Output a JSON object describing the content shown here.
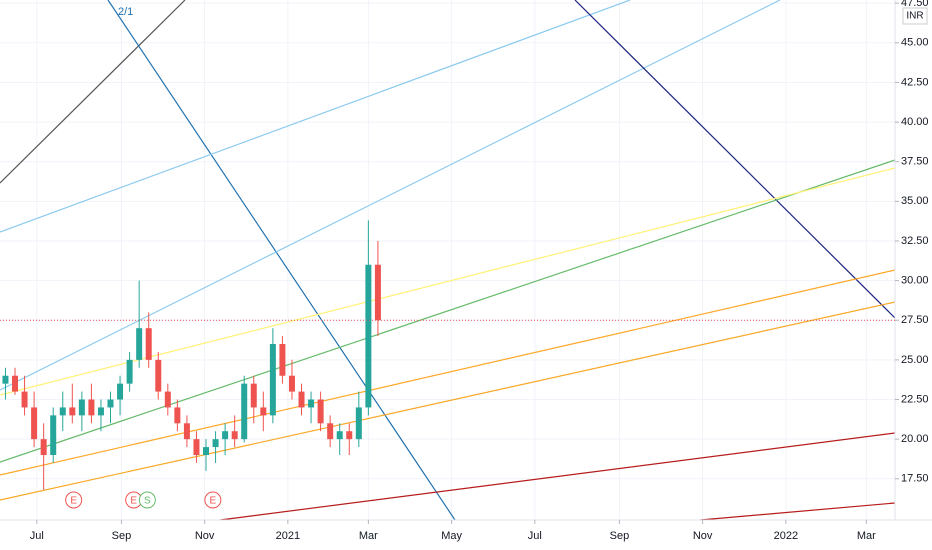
{
  "chart_data": {
    "type": "candlestick",
    "currency": "INR",
    "annotations": [
      "2/1"
    ],
    "xlim": [
      "2020-06-04",
      "2022-03-22"
    ],
    "ylim": [
      14.9,
      47.7
    ],
    "grid": true,
    "up_color": "#26a69a",
    "down_color": "#ef5350",
    "xticks": [
      {
        "value": "2020-07-01",
        "label": "Jul"
      },
      {
        "value": "2020-09-01",
        "label": "Sep"
      },
      {
        "value": "2020-11-01",
        "label": "Nov"
      },
      {
        "value": "2021-01-01",
        "label": "2021"
      },
      {
        "value": "2021-03-01",
        "label": "Mar"
      },
      {
        "value": "2021-05-01",
        "label": "May"
      },
      {
        "value": "2021-07-01",
        "label": "Jul"
      },
      {
        "value": "2021-09-01",
        "label": "Sep"
      },
      {
        "value": "2021-11-01",
        "label": "Nov"
      },
      {
        "value": "2022-01-01",
        "label": "2022"
      },
      {
        "value": "2022-03-01",
        "label": "Mar"
      }
    ],
    "yticks": [
      {
        "value": 17.5,
        "label": "17.50"
      },
      {
        "value": 20,
        "label": "20.00"
      },
      {
        "value": 22.5,
        "label": "22.50"
      },
      {
        "value": 25,
        "label": "25.00"
      },
      {
        "value": 27.5,
        "label": "27.50"
      },
      {
        "value": 30,
        "label": "30.00"
      },
      {
        "value": 32.5,
        "label": "32.50"
      },
      {
        "value": 35,
        "label": "35.00"
      },
      {
        "value": 37.5,
        "label": "37.50"
      },
      {
        "value": 40,
        "label": "40.00"
      },
      {
        "value": 42.5,
        "label": "42.50"
      },
      {
        "value": 45,
        "label": "45.00"
      },
      {
        "value": 47.5,
        "label": "47.50"
      }
    ],
    "events": [
      {
        "date": "2020-07-28",
        "label": "E"
      },
      {
        "date": "2020-09-10",
        "label": "E"
      },
      {
        "date": "2020-09-20",
        "label": "S"
      },
      {
        "date": "2020-11-07",
        "label": "E"
      }
    ],
    "x": [
      "2020-06-08",
      "2020-06-15",
      "2020-06-22",
      "2020-06-29",
      "2020-07-06",
      "2020-07-13",
      "2020-07-20",
      "2020-07-27",
      "2020-08-03",
      "2020-08-10",
      "2020-08-17",
      "2020-08-24",
      "2020-08-31",
      "2020-09-07",
      "2020-09-14",
      "2020-09-21",
      "2020-09-28",
      "2020-10-05",
      "2020-10-12",
      "2020-10-19",
      "2020-10-26",
      "2020-11-02",
      "2020-11-09",
      "2020-11-16",
      "2020-11-23",
      "2020-11-30",
      "2020-12-07",
      "2020-12-14",
      "2020-12-21",
      "2020-12-28",
      "2021-01-04",
      "2021-01-11",
      "2021-01-18",
      "2021-01-25",
      "2021-02-01",
      "2021-02-08",
      "2021-02-15",
      "2021-02-22",
      "2021-03-01",
      "2021-03-08"
    ],
    "open": [
      23.5,
      24,
      23,
      22,
      20,
      19,
      21.5,
      22,
      21.5,
      22.5,
      21.5,
      22,
      22.5,
      23.5,
      25,
      27,
      25,
      23,
      22,
      21,
      20,
      19,
      19.5,
      20,
      20.5,
      20,
      23.5,
      22,
      21.5,
      26,
      24,
      23,
      22,
      22.5,
      21,
      20,
      20.5,
      20,
      22,
      31
    ],
    "high": [
      24.5,
      24.5,
      24,
      23,
      21,
      22,
      23,
      23.5,
      23,
      23.5,
      22.5,
      23,
      24,
      25.5,
      30,
      28,
      25.5,
      23.5,
      22.5,
      21.5,
      20.5,
      20,
      20.5,
      21,
      21.5,
      24,
      24,
      23,
      27,
      26.5,
      25,
      23.5,
      23,
      23,
      21.5,
      21,
      21,
      23,
      33.8,
      32.5
    ],
    "low": [
      22.5,
      22.8,
      21.5,
      19.5,
      16.8,
      18.5,
      20.5,
      21,
      20.5,
      21,
      20.5,
      21,
      21.5,
      23,
      24.5,
      24.5,
      22.5,
      21.5,
      20.5,
      19.5,
      18.5,
      18,
      18.5,
      19,
      19.5,
      19.8,
      21,
      20.5,
      21,
      23.5,
      22.5,
      21.5,
      21,
      20.5,
      19.5,
      19,
      19,
      19.5,
      21.5,
      26.5
    ],
    "close": [
      24,
      23,
      22,
      20,
      19,
      21.5,
      22,
      21.5,
      22.5,
      21.5,
      22,
      22.5,
      23.5,
      25,
      27,
      25,
      23,
      22,
      21,
      20,
      19,
      19.5,
      20,
      20.5,
      20,
      23.5,
      22,
      21.5,
      26,
      24,
      23,
      22,
      22.5,
      21,
      20,
      20.5,
      20,
      22,
      31,
      27.5
    ]
  }
}
